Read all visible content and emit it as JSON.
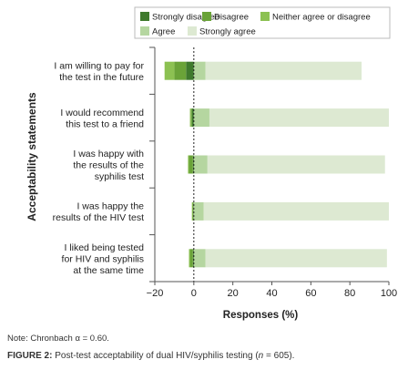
{
  "chart_data": {
    "type": "bar",
    "orientation": "horizontal",
    "stacked": "diverging",
    "categories": [
      [
        "I am willing to pay for",
        "the test in the future"
      ],
      [
        "I would recommend",
        "this test to a friend"
      ],
      [
        "I was happy with",
        "the results of the",
        "syphilis test"
      ],
      [
        "I was happy the",
        "results of the HIV test"
      ],
      [
        "I liked being tested",
        "for HIV and syphilis",
        "at the same time"
      ]
    ],
    "series": [
      {
        "name": "Strongly disagree",
        "color": "#3f7a2d",
        "values": [
          -4,
          -1,
          -0.5,
          -0.3,
          -0.5
        ]
      },
      {
        "name": "Disagree",
        "color": "#6aa338",
        "values": [
          -6,
          -0.5,
          -2,
          -0.3,
          -1.5
        ]
      },
      {
        "name": "Neither agree or disagree",
        "color": "#8cc152",
        "values": [
          -5,
          -0.5,
          -0.5,
          -0.4,
          -0.5
        ]
      },
      {
        "name": "Agree",
        "color": "#b5d6a0",
        "values": [
          6,
          8,
          7,
          5,
          6
        ]
      },
      {
        "name": "Strongly agree",
        "color": "#dde9d2",
        "values": [
          80,
          92,
          91,
          95,
          93
        ]
      }
    ],
    "xlabel": "Responses (%)",
    "ylabel": "Acceptability statements",
    "xlim": [
      -20,
      100
    ],
    "xticks": [
      "−20",
      "0",
      "20",
      "40",
      "60",
      "80",
      "100"
    ],
    "xtick_values": [
      -20,
      0,
      20,
      40,
      60,
      80,
      100
    ],
    "legend_position": "top",
    "zero_line": "dashed"
  },
  "note": "Note: Chronbach α = 0.60.",
  "caption": {
    "label": "FIGURE 2:",
    "text_before": " Post-test acceptability of dual HIV/syphilis testing (",
    "n_symbol": "n",
    "text_after": " = 605)."
  }
}
